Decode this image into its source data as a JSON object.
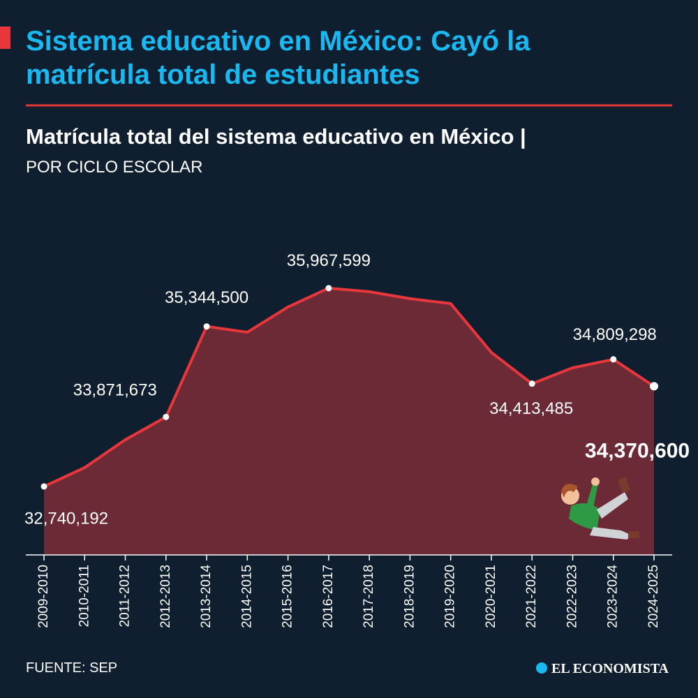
{
  "chart_data": {
    "type": "area",
    "title": "Sistema educativo en México: Cayó la matrícula total de estudiantes",
    "subtitle": "Matrícula total del sistema educativo en México |",
    "unit_note": "POR CICLO ESCOLAR",
    "source": "FUENTE: SEP",
    "brand": "EL ECONOMISTA",
    "categories": [
      "2009-2010",
      "2010-2011",
      "2011-2012",
      "2012-2013",
      "2013-2014",
      "2014-2015",
      "2015-2016",
      "2016-2017",
      "2017-2018",
      "2018-2019",
      "2019-2020",
      "2020-2021",
      "2021-2022",
      "2022-2023",
      "2023-2024",
      "2024-2025"
    ],
    "values": [
      32740192,
      33047000,
      33501000,
      33871673,
      35344500,
      35251000,
      35661000,
      35967599,
      35911000,
      35797000,
      35717000,
      34922000,
      34413485,
      34672000,
      34809298,
      34370600
    ],
    "value_labels": [
      "32,740,192",
      null,
      null,
      "33,871,673",
      "35,344,500",
      null,
      null,
      "35,967,599",
      null,
      null,
      null,
      null,
      "34,413,485",
      null,
      "34,809,298",
      "34,370,600"
    ],
    "color": "#e8373a",
    "area_color": "#6b2a35",
    "ylim": [
      31626000,
      36500000
    ]
  }
}
